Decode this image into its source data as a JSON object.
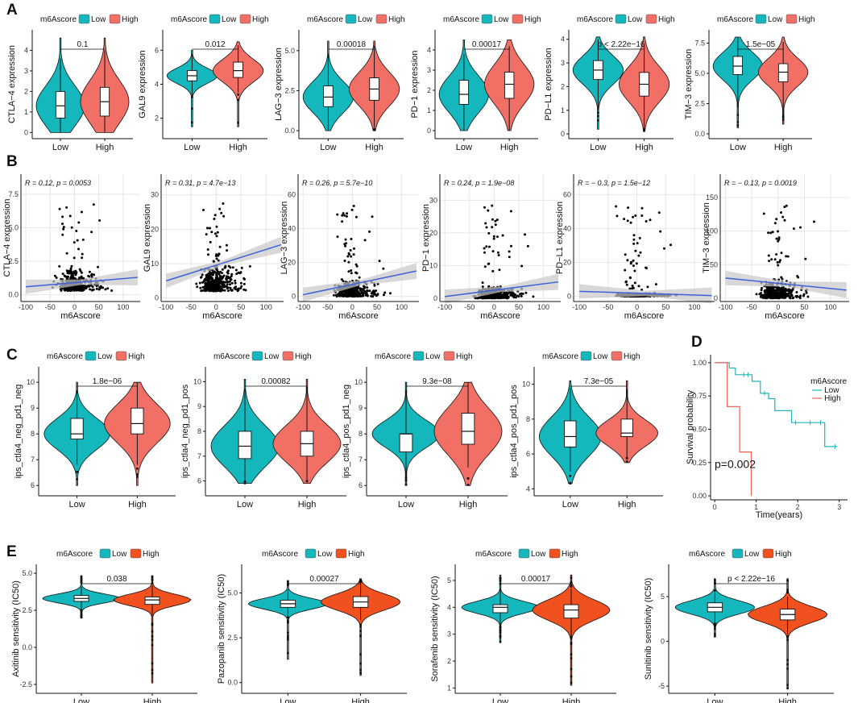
{
  "panel_labels": [
    "A",
    "B",
    "C",
    "D",
    "E"
  ],
  "colors": {
    "low": "#14B8BC",
    "high": "#F26F66",
    "high_e": "#F1501F",
    "reg_line": "#3B62D9",
    "ci": "#C8C8C8",
    "grid": "#E6E6E6",
    "km_low": "#23B5B8",
    "km_high": "#F0625A"
  },
  "legend": {
    "title": "m6Ascore",
    "low": "Low",
    "high": "High"
  },
  "chart_data": [
    {
      "panel": "A",
      "type": "violin",
      "ylabel": "CTLA−4 expression",
      "categories": [
        "Low",
        "High"
      ],
      "yticks": [
        "0",
        "1",
        "2",
        "3",
        "4"
      ],
      "ylim": [
        -0.3,
        5
      ],
      "pvalue": "0.1",
      "groups": [
        {
          "name": "Low",
          "median": 1.3,
          "q1": 0.7,
          "q3": 2.0,
          "wlo": 0,
          "whi": 3.6,
          "min": 0,
          "max": 4.6
        },
        {
          "name": "High",
          "median": 1.5,
          "q1": 0.8,
          "q3": 2.2,
          "wlo": 0,
          "whi": 4.0,
          "min": 0,
          "max": 4.6
        }
      ]
    },
    {
      "panel": "A",
      "type": "violin",
      "ylabel": "GAL9 expression",
      "categories": [
        "Low",
        "High"
      ],
      "yticks": [
        "2",
        "4",
        "6"
      ],
      "ylim": [
        0.8,
        7.2
      ],
      "pvalue": "0.012",
      "groups": [
        {
          "name": "Low",
          "median": 4.5,
          "q1": 4.2,
          "q3": 4.8,
          "wlo": 3.3,
          "whi": 5.8,
          "min": 1.5,
          "max": 6.0
        },
        {
          "name": "High",
          "median": 4.8,
          "q1": 4.4,
          "q3": 5.3,
          "wlo": 3.5,
          "whi": 6.3,
          "min": 1.5,
          "max": 6.5
        }
      ]
    },
    {
      "panel": "A",
      "type": "violin",
      "ylabel": "LAG−3 expression",
      "categories": [
        "Low",
        "High"
      ],
      "yticks": [
        "0.0",
        "2.5",
        "5.0"
      ],
      "ylim": [
        -0.5,
        6.3
      ],
      "pvalue": "0.00018",
      "groups": [
        {
          "name": "Low",
          "median": 2.1,
          "q1": 1.5,
          "q3": 2.8,
          "wlo": 0,
          "whi": 4.8,
          "min": 0,
          "max": 5.6
        },
        {
          "name": "High",
          "median": 2.6,
          "q1": 1.9,
          "q3": 3.3,
          "wlo": 0.2,
          "whi": 5.3,
          "min": 0,
          "max": 5.6
        }
      ]
    },
    {
      "panel": "A",
      "type": "violin",
      "ylabel": "PD−1 expression",
      "categories": [
        "Low",
        "High"
      ],
      "yticks": [
        "0",
        "1",
        "2",
        "3",
        "4"
      ],
      "ylim": [
        -0.4,
        5
      ],
      "pvalue": "0.00017",
      "groups": [
        {
          "name": "Low",
          "median": 1.8,
          "q1": 1.3,
          "q3": 2.5,
          "wlo": 0,
          "whi": 3.8,
          "min": 0,
          "max": 4.5
        },
        {
          "name": "High",
          "median": 2.3,
          "q1": 1.6,
          "q3": 2.9,
          "wlo": 0,
          "whi": 4.2,
          "min": 0,
          "max": 4.5
        }
      ]
    },
    {
      "panel": "A",
      "type": "violin",
      "ylabel": "PD−L1 expression",
      "categories": [
        "Low",
        "High"
      ],
      "yticks": [
        "0",
        "1",
        "2",
        "3",
        "4"
      ],
      "ylim": [
        -0.2,
        4.4
      ],
      "pvalue": "p < 2.22e−16",
      "groups": [
        {
          "name": "Low",
          "median": 2.7,
          "q1": 2.3,
          "q3": 3.1,
          "wlo": 1.0,
          "whi": 4.0,
          "min": 0.2,
          "max": 4.1
        },
        {
          "name": "High",
          "median": 2.1,
          "q1": 1.6,
          "q3": 2.6,
          "wlo": 0.2,
          "whi": 3.8,
          "min": 0.1,
          "max": 4.1
        }
      ]
    },
    {
      "panel": "A",
      "type": "violin",
      "ylabel": "TIM−3 expression",
      "categories": [
        "Low",
        "High"
      ],
      "yticks": [
        "0.0",
        "2.5",
        "5.0",
        "7.5"
      ],
      "ylim": [
        -0.4,
        8.6
      ],
      "pvalue": "1.5e−05",
      "groups": [
        {
          "name": "Low",
          "median": 5.6,
          "q1": 4.9,
          "q3": 6.4,
          "wlo": 2.2,
          "whi": 8.0,
          "min": 0.5,
          "max": 8.0
        },
        {
          "name": "High",
          "median": 5.1,
          "q1": 4.3,
          "q3": 5.8,
          "wlo": 1.5,
          "whi": 7.6,
          "min": 0.8,
          "max": 8.0
        }
      ]
    },
    {
      "panel": "B",
      "type": "scatter",
      "xlabel": "m6Ascore",
      "ylabel": "CTLA−4 expression",
      "annotation": "R = 0.12, p = 0.0053",
      "xticks": [
        "-100",
        "-50",
        "0",
        "50",
        "100"
      ],
      "yticks": [
        "0.0",
        "2.5",
        "5.0",
        "7.5"
      ],
      "xlim": [
        -110,
        135
      ],
      "ylim": [
        -0.5,
        9
      ],
      "cluster_y": [
        0.3,
        4
      ],
      "line": [
        0.6,
        1.3
      ],
      "seed": 11
    },
    {
      "panel": "B",
      "type": "scatter",
      "xlabel": "m6Ascore",
      "ylabel": "GAL9 expression",
      "annotation": "R = 0.31, p = 4.7e−13",
      "xticks": [
        "-100",
        "-50",
        "0",
        "50",
        "100"
      ],
      "yticks": [
        "0",
        "10",
        "20",
        "30"
      ],
      "xlim": [
        -110,
        135
      ],
      "ylim": [
        -1,
        36
      ],
      "cluster_y": [
        2,
        20
      ],
      "line": [
        5,
        15.5
      ],
      "seed": 22
    },
    {
      "panel": "B",
      "type": "scatter",
      "xlabel": "m6Ascore",
      "ylabel": "LAG−3 expression",
      "annotation": "R = 0.26, p = 5.7e−10",
      "xticks": [
        "-100",
        "-50",
        "0",
        "50",
        "100"
      ],
      "yticks": [
        "0",
        "20",
        "40",
        "60"
      ],
      "xlim": [
        -110,
        135
      ],
      "ylim": [
        -3,
        72
      ],
      "cluster_y": [
        0,
        22
      ],
      "line": [
        1,
        15
      ],
      "seed": 33
    },
    {
      "panel": "B",
      "type": "scatter",
      "xlabel": "m6Ascore",
      "ylabel": "PD−1 expression",
      "annotation": "R = 0.24, p = 1.9e−08",
      "xticks": [
        "-100",
        "-50",
        "0",
        "50",
        "100"
      ],
      "yticks": [
        "0",
        "10",
        "20",
        "30"
      ],
      "xlim": [
        -110,
        135
      ],
      "ylim": [
        -1,
        38
      ],
      "cluster_y": [
        0,
        8
      ],
      "line": [
        0.5,
        5
      ],
      "seed": 44
    },
    {
      "panel": "B",
      "type": "scatter",
      "xlabel": "m6Ascore",
      "ylabel": "PD−L1 expression",
      "annotation": "R = − 0.3, p = 1.5e−12",
      "xticks": [
        "-100",
        "-50",
        "0",
        "50",
        "100"
      ],
      "yticks": [
        "0",
        "20",
        "40",
        "60"
      ],
      "xlim": [
        -110,
        135
      ],
      "ylim": [
        -3,
        72
      ],
      "cluster_y": [
        0,
        4
      ],
      "line": [
        3,
        0.5
      ],
      "seed": 55
    },
    {
      "panel": "B",
      "type": "scatter",
      "xlabel": "m6Ascore",
      "ylabel": "TIM−3 expression",
      "annotation": "R = − 0.13, p = 0.0019",
      "xticks": [
        "-100",
        "-50",
        "0",
        "50",
        "100"
      ],
      "yticks": [
        "0",
        "50",
        "100",
        "150"
      ],
      "xlim": [
        -110,
        135
      ],
      "ylim": [
        -5,
        185
      ],
      "cluster_y": [
        0,
        60
      ],
      "line": [
        30,
        12
      ],
      "seed": 66
    },
    {
      "panel": "C",
      "type": "violin",
      "ylabel": "ips_ctla4_neg_pd1_neg",
      "categories": [
        "Low",
        "High"
      ],
      "yticks": [
        "6",
        "7",
        "8",
        "9",
        "10"
      ],
      "ylim": [
        5.6,
        10.6
      ],
      "pvalue": "1.8e−06",
      "groups": [
        {
          "name": "Low",
          "median": 8.0,
          "q1": 7.8,
          "q3": 8.6,
          "wlo": 6.8,
          "whi": 9.7,
          "min": 6.0,
          "max": 10.0
        },
        {
          "name": "High",
          "median": 8.4,
          "q1": 8.0,
          "q3": 9.0,
          "wlo": 6.8,
          "whi": 10.0,
          "min": 6.0,
          "max": 10.0
        }
      ]
    },
    {
      "panel": "C",
      "type": "violin",
      "ylabel": "ips_ctla4_neg_pd1_pos",
      "categories": [
        "Low",
        "High"
      ],
      "yticks": [
        "6",
        "7",
        "8",
        "9",
        "10"
      ],
      "ylim": [
        5.4,
        10.6
      ],
      "pvalue": "0.00082",
      "groups": [
        {
          "name": "Low",
          "median": 7.4,
          "q1": 6.9,
          "q3": 8.0,
          "wlo": 6.0,
          "whi": 9.7,
          "min": 5.9,
          "max": 10.1
        },
        {
          "name": "High",
          "median": 7.5,
          "q1": 7.0,
          "q3": 8.0,
          "wlo": 6.0,
          "whi": 9.8,
          "min": 5.9,
          "max": 10.1
        }
      ]
    },
    {
      "panel": "C",
      "type": "violin",
      "ylabel": "ips_ctla4_pos_pd1_neg",
      "categories": [
        "Low",
        "High"
      ],
      "yticks": [
        "6",
        "7",
        "8",
        "9",
        "10"
      ],
      "ylim": [
        5.6,
        10.6
      ],
      "pvalue": "9.3e−08",
      "groups": [
        {
          "name": "Low",
          "median": 8.0,
          "q1": 7.3,
          "q3": 8.0,
          "wlo": 6.3,
          "whi": 9.7,
          "min": 6.0,
          "max": 10.0
        },
        {
          "name": "High",
          "median": 8.1,
          "q1": 7.6,
          "q3": 8.8,
          "wlo": 6.7,
          "whi": 10.0,
          "min": 6.0,
          "max": 10.0
        }
      ]
    },
    {
      "panel": "C",
      "type": "violin",
      "ylabel": "ips_ctla4_pos_pd1_pos",
      "categories": [
        "Low",
        "High"
      ],
      "yticks": [
        "4",
        "6",
        "8",
        "10"
      ],
      "ylim": [
        3.6,
        11
      ],
      "pvalue": "7.3e−05",
      "groups": [
        {
          "name": "Low",
          "median": 7.0,
          "q1": 6.4,
          "q3": 7.9,
          "wlo": 5.0,
          "whi": 9.8,
          "min": 4.3,
          "max": 10.2
        },
        {
          "name": "High",
          "median": 7.2,
          "q1": 7.0,
          "q3": 8.0,
          "wlo": 5.8,
          "whi": 9.7,
          "min": 5.5,
          "max": 10.2
        }
      ]
    },
    {
      "panel": "D",
      "type": "km",
      "ylabel": "Survival probability",
      "xlabel": "Time(years)",
      "legend_title": "m6Ascore",
      "legend": [
        "Low",
        "High"
      ],
      "pvalue": "p=0.002",
      "xticks": [
        "0",
        "1",
        "2",
        "3"
      ],
      "yticks": [
        "0.00",
        "0.25",
        "0.50",
        "0.75",
        "1.00"
      ],
      "xlim": [
        -0.1,
        3.2
      ],
      "ylim": [
        -0.03,
        1.06
      ],
      "series": [
        {
          "name": "Low",
          "steps": [
            [
              0,
              1.0
            ],
            [
              0.35,
              1.0
            ],
            [
              0.35,
              0.96
            ],
            [
              0.5,
              0.96
            ],
            [
              0.5,
              0.91
            ],
            [
              0.9,
              0.91
            ],
            [
              0.9,
              0.86
            ],
            [
              1.1,
              0.86
            ],
            [
              1.1,
              0.77
            ],
            [
              1.3,
              0.77
            ],
            [
              1.3,
              0.73
            ],
            [
              1.45,
              0.73
            ],
            [
              1.45,
              0.64
            ],
            [
              1.85,
              0.64
            ],
            [
              1.85,
              0.55
            ],
            [
              2.65,
              0.55
            ],
            [
              2.65,
              0.37
            ],
            [
              2.95,
              0.37
            ]
          ],
          "censor": [
            [
              0.7,
              0.91
            ],
            [
              0.8,
              0.91
            ],
            [
              1.2,
              0.77
            ],
            [
              1.95,
              0.55
            ],
            [
              2.3,
              0.55
            ],
            [
              2.55,
              0.55
            ],
            [
              2.9,
              0.37
            ]
          ]
        },
        {
          "name": "High",
          "steps": [
            [
              0,
              1.0
            ],
            [
              0.3,
              1.0
            ],
            [
              0.3,
              0.67
            ],
            [
              0.6,
              0.67
            ],
            [
              0.6,
              0.33
            ],
            [
              0.88,
              0.33
            ],
            [
              0.88,
              0.0
            ]
          ],
          "censor": []
        }
      ]
    },
    {
      "panel": "E",
      "type": "violin",
      "style": "drug",
      "ylabel": "Axitinib sensitivity (IC50)",
      "categories": [
        "Low",
        "High"
      ],
      "yticks": [
        "-2.5",
        "0.0",
        "2.5",
        "5.0"
      ],
      "ylim": [
        -3.1,
        5.6
      ],
      "pvalue": "0.038",
      "groups": [
        {
          "name": "Low",
          "median": 3.3,
          "q1": 3.1,
          "q3": 3.5,
          "wlo": 2.5,
          "whi": 4.1,
          "min": 2.0,
          "max": 4.8
        },
        {
          "name": "High",
          "median": 3.2,
          "q1": 2.9,
          "q3": 3.4,
          "wlo": 2.1,
          "whi": 4.2,
          "min": -2.4,
          "max": 4.8
        }
      ]
    },
    {
      "panel": "E",
      "type": "violin",
      "style": "drug",
      "ylabel": "Pazopanib sensitivity (IC50)",
      "categories": [
        "Low",
        "High"
      ],
      "yticks": [
        "0.0",
        "2.5",
        "5.0"
      ],
      "ylim": [
        -0.6,
        6.6
      ],
      "pvalue": "0.00027",
      "groups": [
        {
          "name": "Low",
          "median": 4.4,
          "q1": 4.2,
          "q3": 4.6,
          "wlo": 3.7,
          "whi": 5.2,
          "min": 1.3,
          "max": 5.7
        },
        {
          "name": "High",
          "median": 4.5,
          "q1": 4.2,
          "q3": 4.8,
          "wlo": 3.5,
          "whi": 5.6,
          "min": 0.4,
          "max": 5.8
        }
      ]
    },
    {
      "panel": "E",
      "type": "violin",
      "style": "drug",
      "ylabel": "Sorafenib sensitivity (IC50)",
      "categories": [
        "Low",
        "High"
      ],
      "yticks": [
        "1",
        "2",
        "3",
        "4",
        "5"
      ],
      "ylim": [
        0.8,
        5.6
      ],
      "pvalue": "0.00017",
      "groups": [
        {
          "name": "Low",
          "median": 4.0,
          "q1": 3.8,
          "q3": 4.1,
          "wlo": 3.3,
          "whi": 4.7,
          "min": 2.7,
          "max": 5.2
        },
        {
          "name": "High",
          "median": 3.9,
          "q1": 3.6,
          "q3": 4.1,
          "wlo": 2.9,
          "whi": 4.7,
          "min": 1.1,
          "max": 5.2
        }
      ]
    },
    {
      "panel": "E",
      "type": "violin",
      "style": "drug",
      "ylabel": "Sunitinib sensitivity (IC50)",
      "categories": [
        "Low",
        "High"
      ],
      "yticks": [
        "-5",
        "0",
        "5"
      ],
      "ylim": [
        -5.8,
        8.6
      ],
      "pvalue": "p < 2.22e−16",
      "groups": [
        {
          "name": "Low",
          "median": 3.8,
          "q1": 3.3,
          "q3": 4.3,
          "wlo": 2.0,
          "whi": 5.5,
          "min": 0.5,
          "max": 7.0
        },
        {
          "name": "High",
          "median": 3.0,
          "q1": 2.4,
          "q3": 3.6,
          "wlo": 0.8,
          "whi": 5.0,
          "min": -5.3,
          "max": 7.0
        }
      ]
    }
  ]
}
